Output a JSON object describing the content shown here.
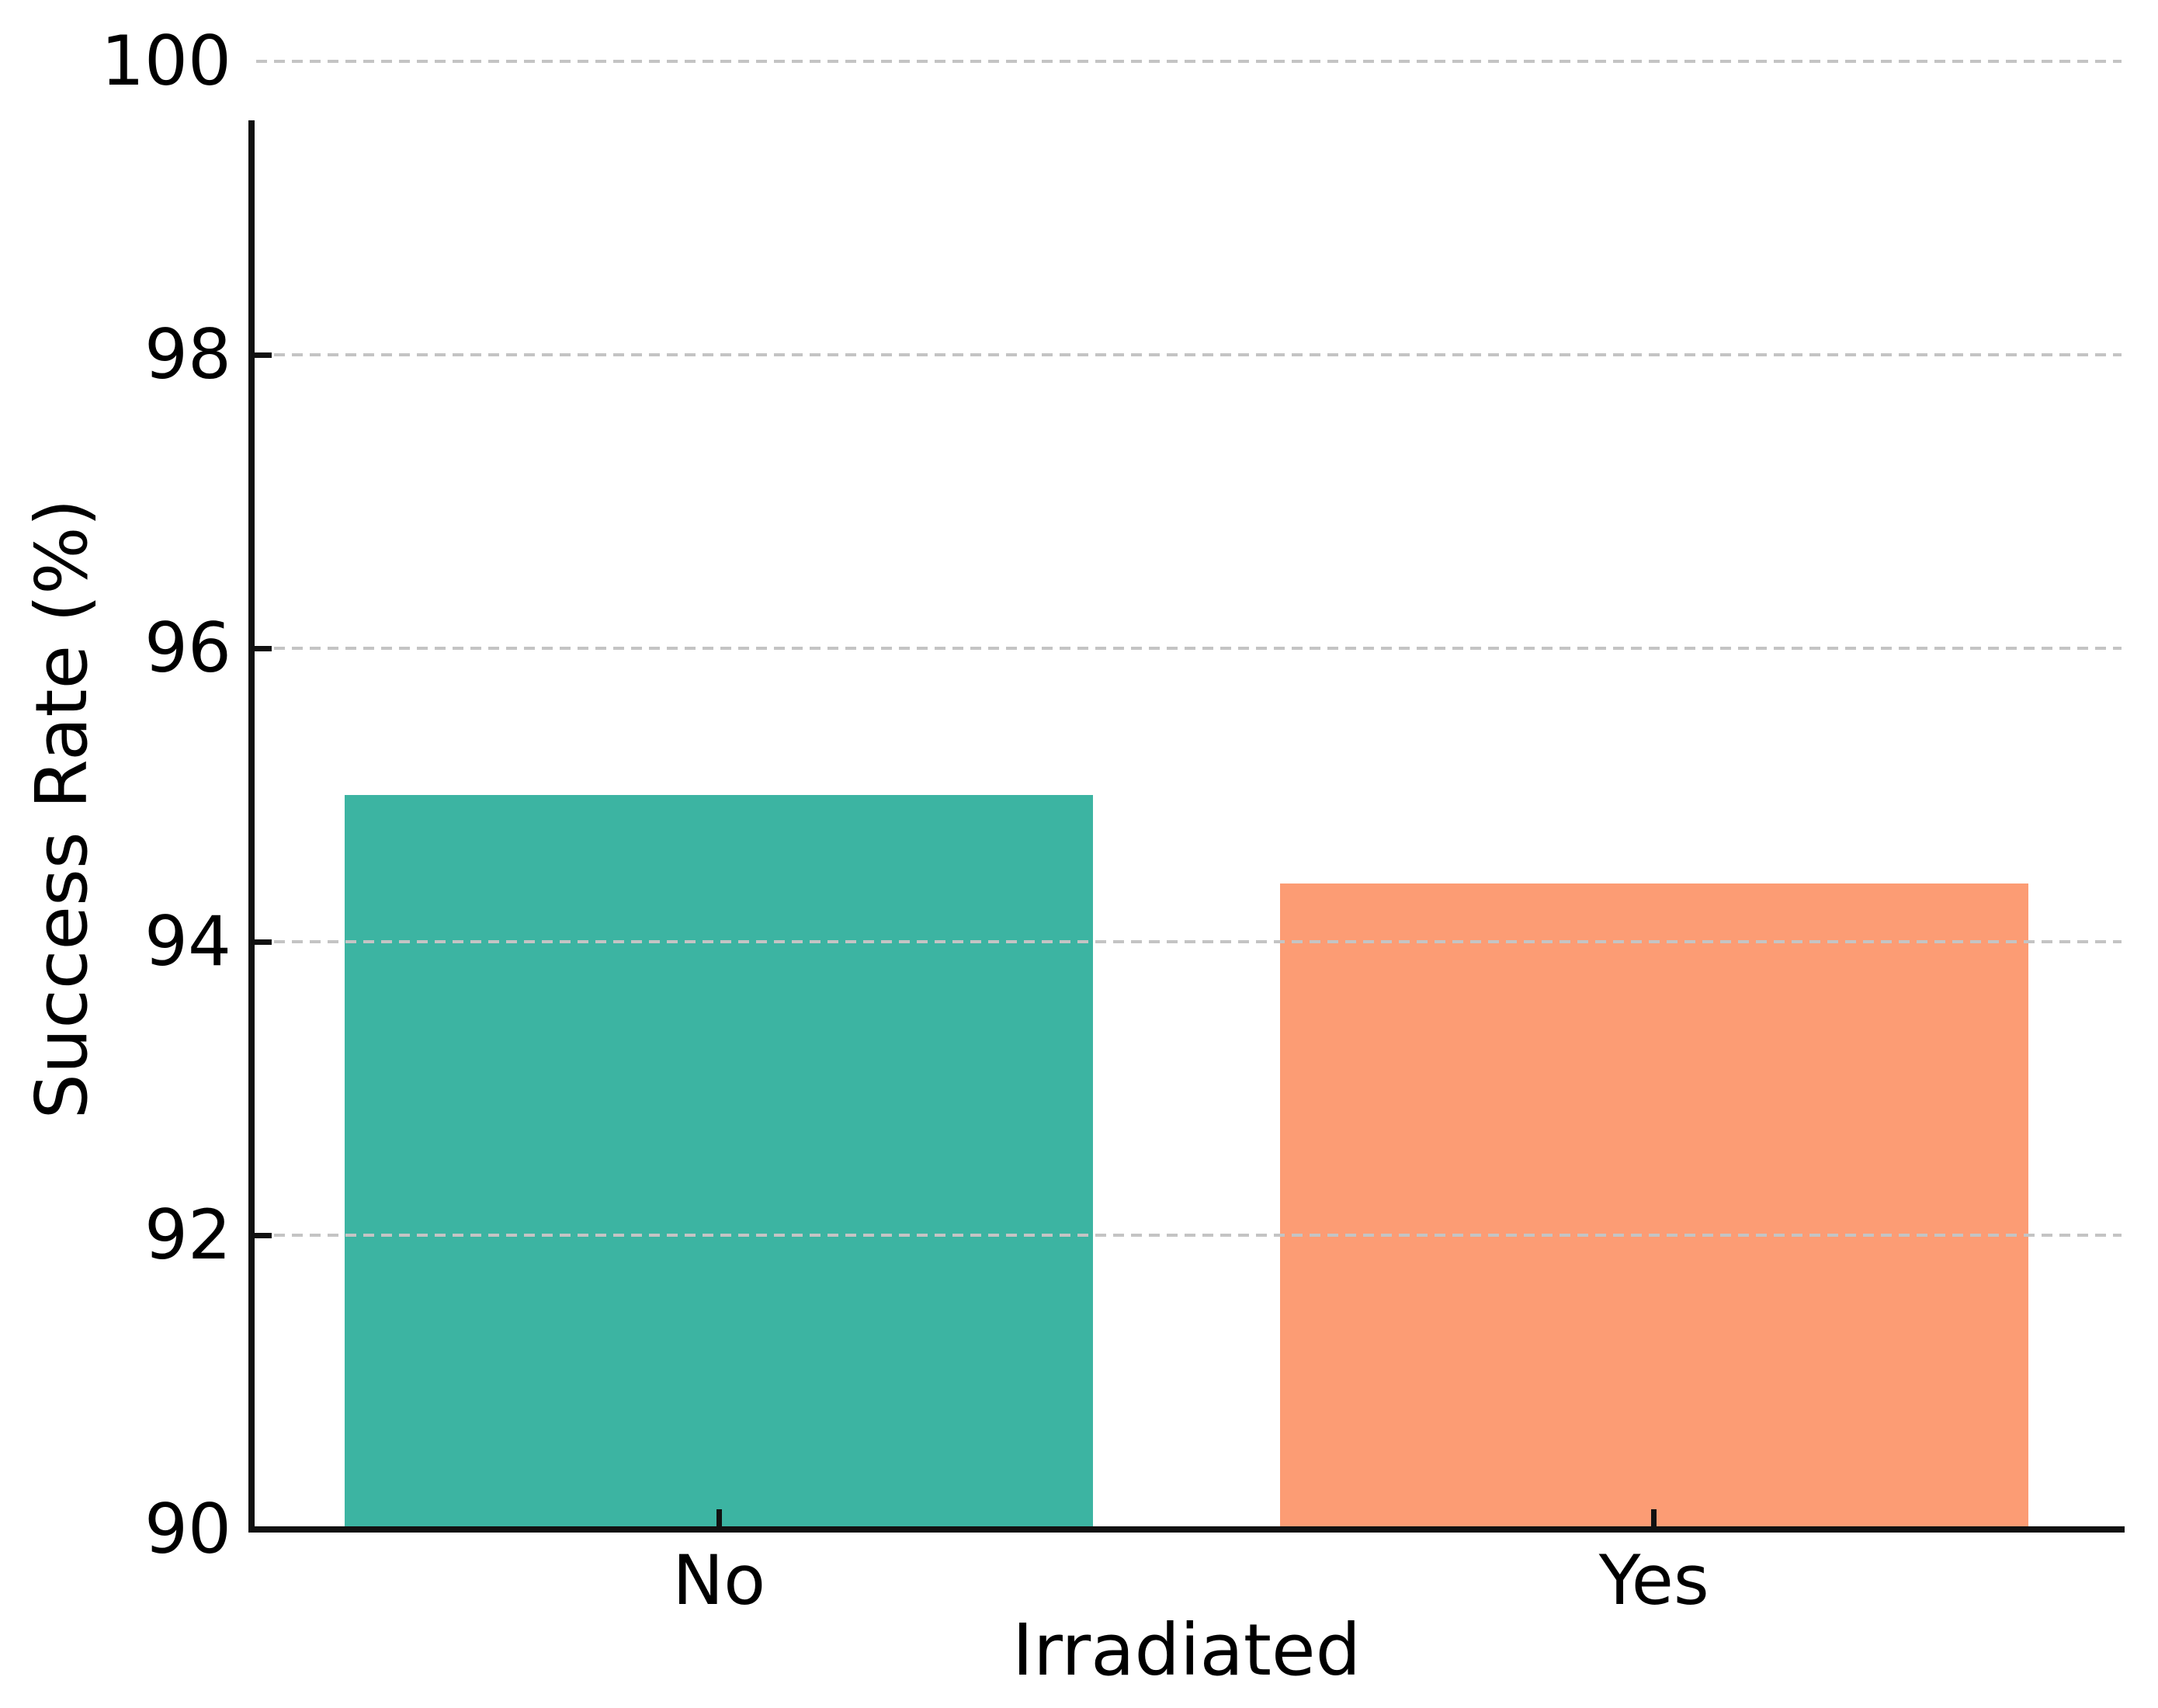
{
  "chart_data": {
    "type": "bar",
    "categories": [
      "No",
      "Yes"
    ],
    "values": [
      95.0,
      94.4
    ],
    "series_name": "Success Rate",
    "title": "",
    "xlabel": "Irradiated",
    "ylabel": "Success Rate (%)",
    "ylim": [
      90,
      100
    ],
    "yticks": [
      90,
      92,
      94,
      96,
      98,
      100
    ],
    "ytick_labels": [
      "90",
      "92",
      "94",
      "96",
      "98",
      "100"
    ],
    "bar_colors": [
      "#3cb4a2",
      "#fc9c74"
    ],
    "grid": "horizontal-dashed",
    "grid_color": "#c4c4c4",
    "axis_color": "#111111",
    "legend": "none",
    "bars_per_category_width_fraction": 0.8
  }
}
